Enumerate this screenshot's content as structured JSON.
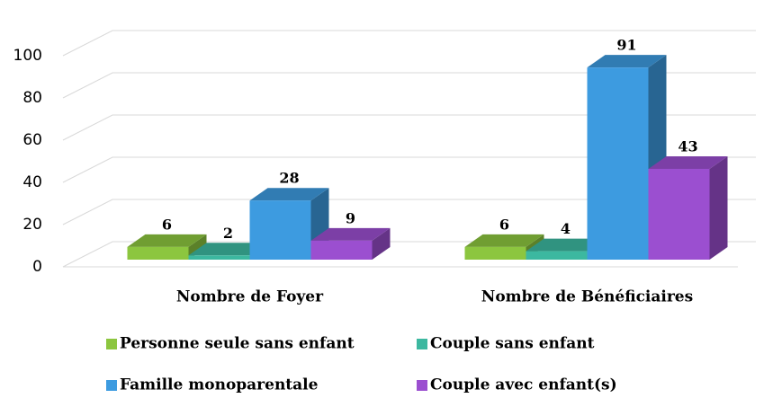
{
  "chart_data": {
    "type": "bar3d",
    "categories": [
      "Nombre de Foyer",
      "Nombre de Bénéficiaires"
    ],
    "series": [
      {
        "name": "Personne seule sans enfant",
        "color": "#8cc63f",
        "values": [
          6,
          6
        ]
      },
      {
        "name": "Couple sans enfant",
        "color": "#3cb8a0",
        "values": [
          2,
          4
        ]
      },
      {
        "name": "Famille monoparentale",
        "color": "#3d9be0",
        "values": [
          28,
          91
        ]
      },
      {
        "name": "Couple avec enfant(s)",
        "color": "#9b4fd0",
        "values": [
          9,
          43
        ]
      }
    ],
    "ylim": [
      0,
      100
    ],
    "yticks": [
      0,
      20,
      40,
      60,
      80,
      100
    ],
    "grid": true
  }
}
